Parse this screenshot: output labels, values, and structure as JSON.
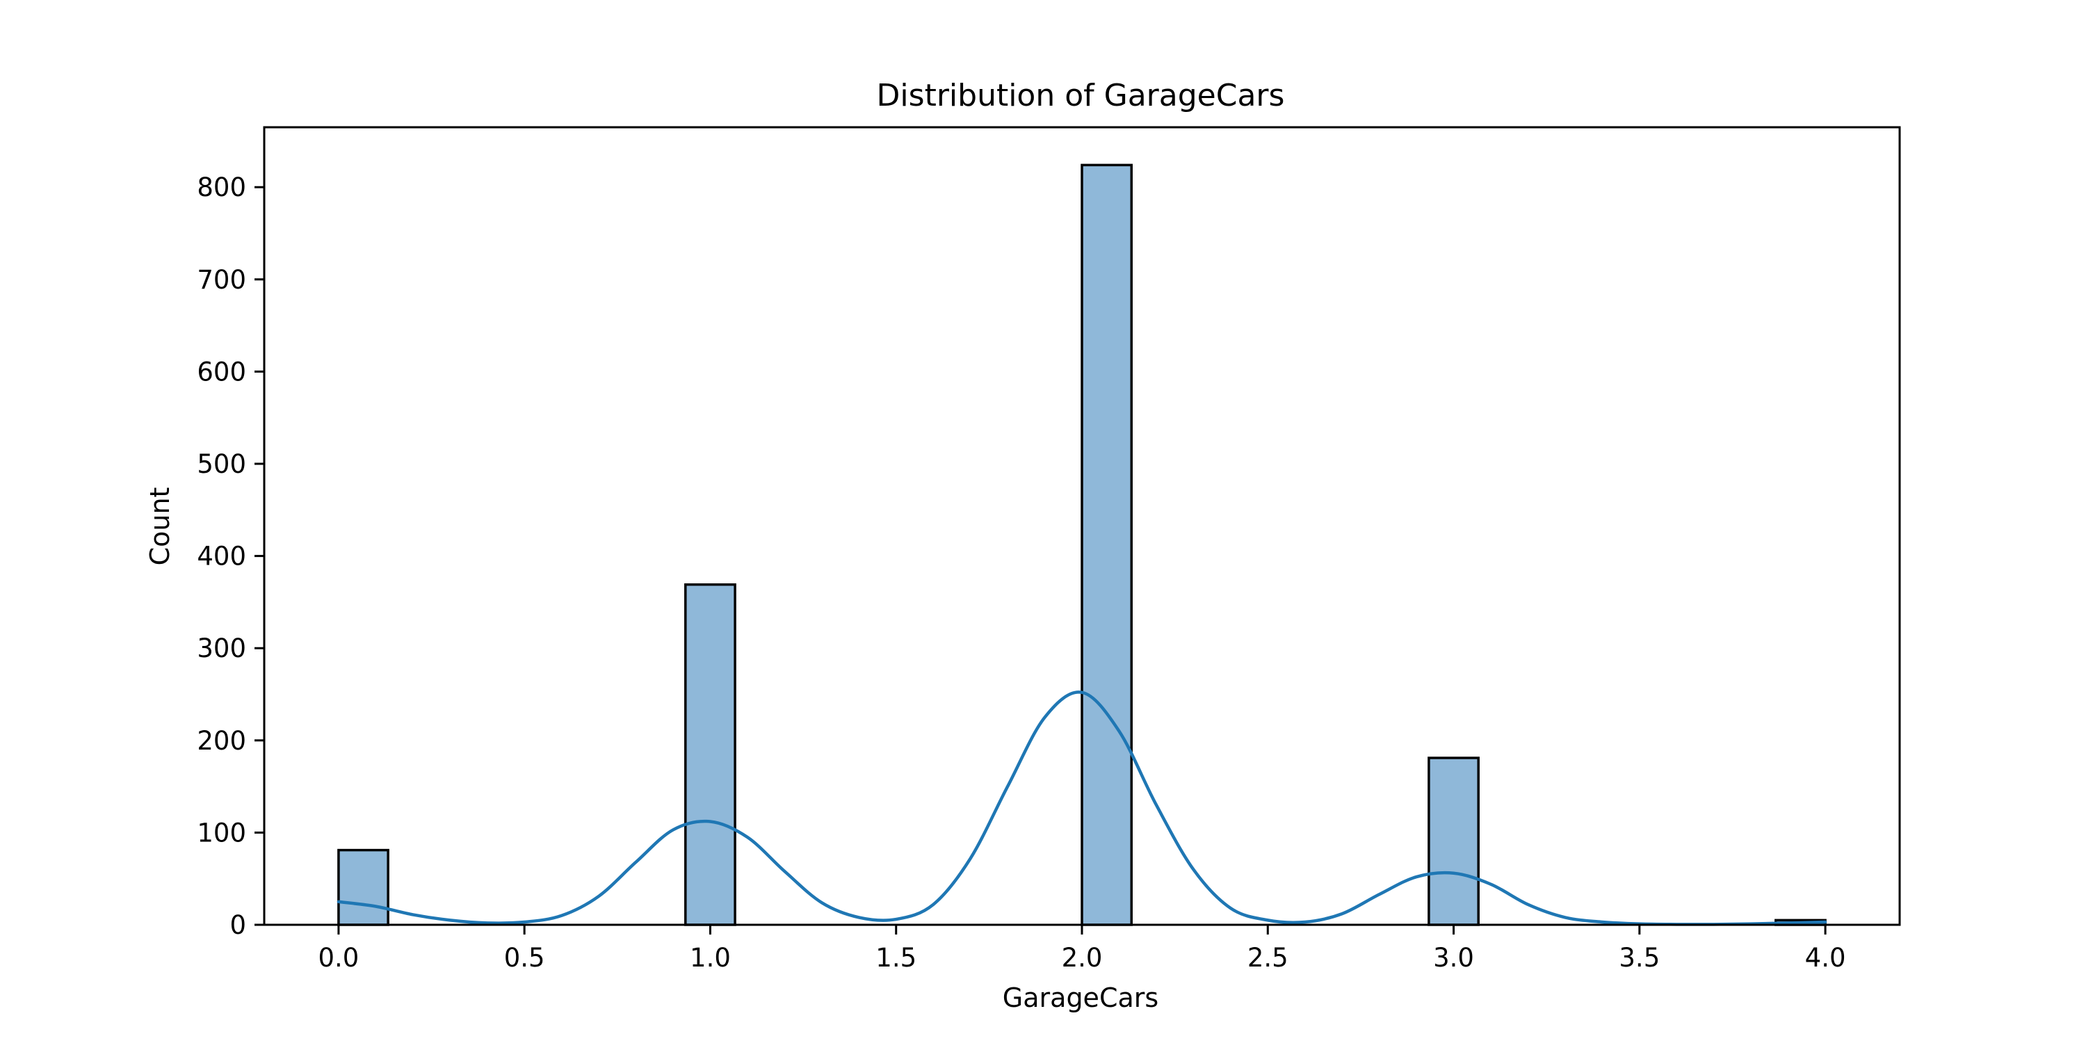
{
  "chart_data": {
    "type": "bar",
    "title": "Distribution of GarageCars",
    "xlabel": "GarageCars",
    "ylabel": "Count",
    "xlim": [
      -0.2,
      4.2
    ],
    "ylim": [
      0,
      865
    ],
    "grid": false,
    "x_ticks": [
      0.0,
      0.5,
      1.0,
      1.5,
      2.0,
      2.5,
      3.0,
      3.5,
      4.0
    ],
    "x_tick_labels": [
      "0.0",
      "0.5",
      "1.0",
      "1.5",
      "2.0",
      "2.5",
      "3.0",
      "3.5",
      "4.0"
    ],
    "y_ticks": [
      0,
      100,
      200,
      300,
      400,
      500,
      600,
      700,
      800
    ],
    "y_tick_labels": [
      "0",
      "100",
      "200",
      "300",
      "400",
      "500",
      "600",
      "700",
      "800"
    ],
    "bins": [
      {
        "x0": 0.0,
        "x1": 0.1333,
        "count": 81
      },
      {
        "x0": 0.9333,
        "x1": 1.0667,
        "count": 369
      },
      {
        "x0": 2.0,
        "x1": 2.1333,
        "count": 824
      },
      {
        "x0": 2.9333,
        "x1": 3.0667,
        "count": 181
      },
      {
        "x0": 3.8667,
        "x1": 4.0,
        "count": 5
      }
    ],
    "kde": {
      "x": [
        0.0,
        0.1,
        0.2,
        0.3,
        0.4,
        0.5,
        0.6,
        0.7,
        0.8,
        0.9,
        1.0,
        1.1,
        1.2,
        1.3,
        1.4,
        1.5,
        1.6,
        1.7,
        1.8,
        1.9,
        2.0,
        2.1,
        2.2,
        2.3,
        2.4,
        2.5,
        2.6,
        2.7,
        2.8,
        2.9,
        3.0,
        3.1,
        3.2,
        3.3,
        3.4,
        3.5,
        3.6,
        3.7,
        3.8,
        3.9,
        4.0
      ],
      "y": [
        25,
        20,
        11,
        5,
        2,
        3,
        10,
        31,
        68,
        103,
        112,
        95,
        58,
        24,
        8,
        6,
        22,
        72,
        150,
        225,
        252,
        210,
        130,
        60,
        18,
        5,
        3,
        12,
        33,
        52,
        56,
        44,
        22,
        8,
        3,
        1,
        0.5,
        0.5,
        1,
        2,
        3
      ]
    },
    "colors": {
      "bar_fill": "#8fb8d9",
      "kde_line": "#1f77b4"
    }
  }
}
